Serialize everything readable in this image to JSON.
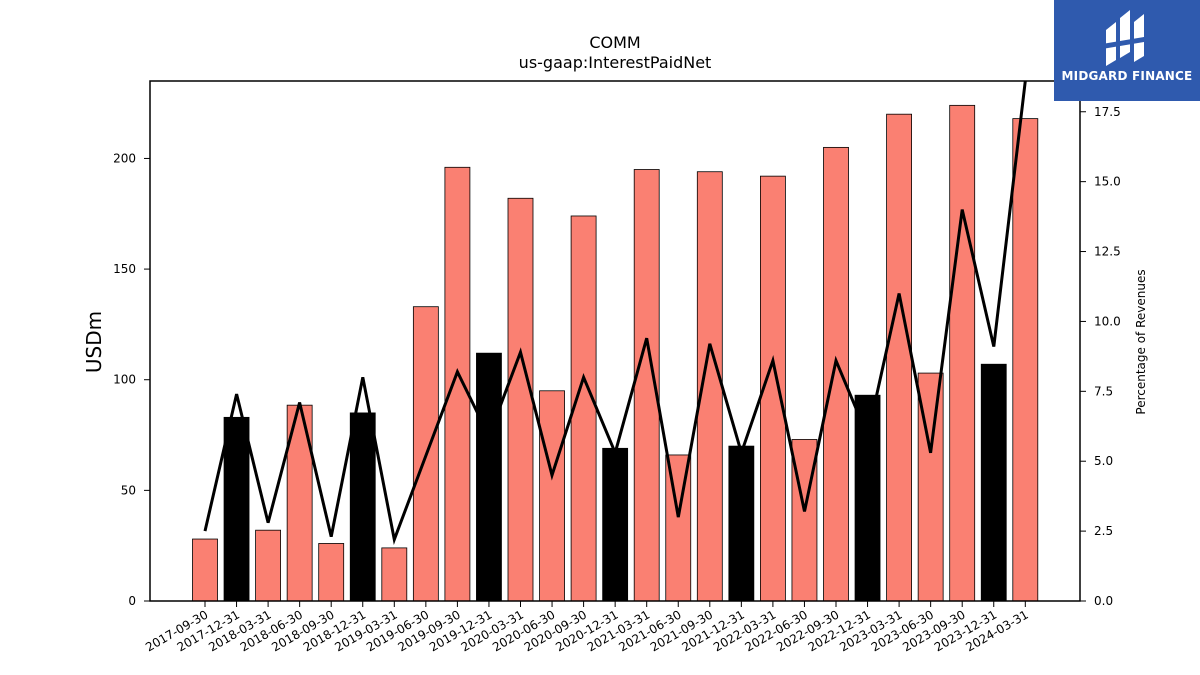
{
  "logo": {
    "text": "MIDGARD FINANCE"
  },
  "colors": {
    "quarter_bar": "#fa8072",
    "year_end_bar": "#000000",
    "line": "#000000",
    "logo_bg": "#2f5aae"
  },
  "chart_data": {
    "type": "bar",
    "title": "COMM",
    "subtitle": "us-gaap:InterestPaidNet",
    "ylabel": "USDm",
    "ylabel_right": "Percentage of Revenues",
    "ylim": [
      0,
      235
    ],
    "ylim_right": [
      0,
      18.6
    ],
    "yticks": [
      0,
      50,
      100,
      150,
      200
    ],
    "yticks_right": [
      "0.0",
      "2.5",
      "5.0",
      "7.5",
      "10.0",
      "12.5",
      "15.0",
      "17.5"
    ],
    "categories": [
      "2017-09-30",
      "2017-12-31",
      "2018-03-31",
      "2018-06-30",
      "2018-09-30",
      "2018-12-31",
      "2019-03-31",
      "2019-06-30",
      "2019-09-30",
      "2019-12-31",
      "2020-03-31",
      "2020-06-30",
      "2020-09-30",
      "2020-12-31",
      "2021-03-31",
      "2021-06-30",
      "2021-09-30",
      "2021-12-31",
      "2022-03-31",
      "2022-06-30",
      "2022-09-30",
      "2022-12-31",
      "2023-03-31",
      "2023-06-30",
      "2023-09-30",
      "2023-12-31",
      "2024-03-31"
    ],
    "series": [
      {
        "type": "bar",
        "axis": "left",
        "values": [
          28,
          83,
          32,
          88.5,
          26,
          85,
          24,
          133,
          196,
          112,
          182,
          95,
          174,
          69,
          195,
          66,
          194,
          70,
          192,
          73,
          205,
          93,
          220,
          103,
          224,
          107,
          218
        ],
        "year_end": [
          false,
          true,
          false,
          false,
          false,
          true,
          false,
          false,
          false,
          true,
          false,
          false,
          false,
          true,
          false,
          false,
          false,
          true,
          false,
          false,
          false,
          true,
          false,
          false,
          false,
          true,
          false
        ]
      },
      {
        "type": "line",
        "axis": "right",
        "values": [
          2.5,
          7.4,
          2.8,
          7.1,
          2.3,
          8.0,
          2.2,
          5.2,
          8.2,
          5.9,
          8.9,
          4.5,
          8.0,
          5.3,
          9.4,
          3.0,
          9.2,
          5.3,
          8.6,
          3.2,
          8.6,
          5.9,
          11.0,
          5.3,
          14.0,
          9.1,
          18.6
        ]
      }
    ],
    "grid": false
  }
}
